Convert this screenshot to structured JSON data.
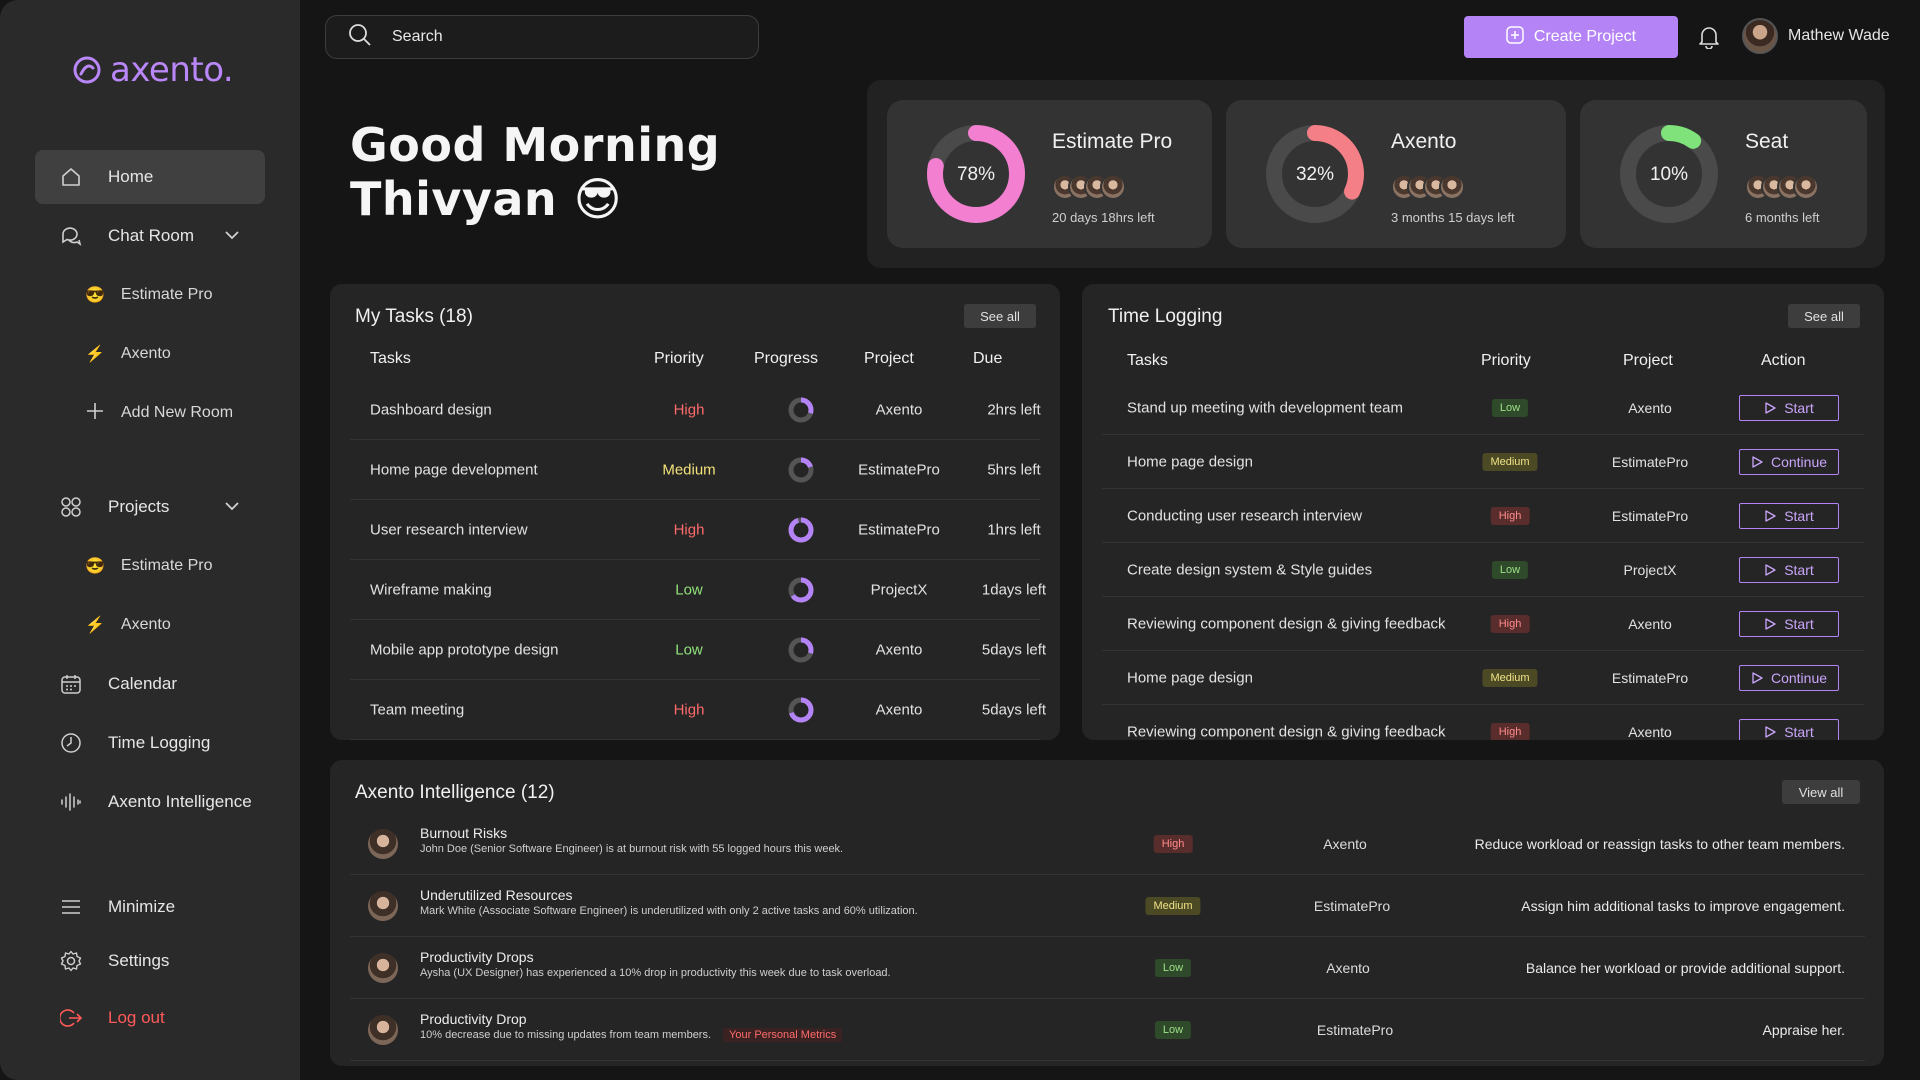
{
  "brand": {
    "name": "axento."
  },
  "sidebar": {
    "home": "Home",
    "chat_room": "Chat Room",
    "chat_rooms": [
      {
        "emoji": "😎",
        "label": "Estimate Pro"
      },
      {
        "emoji": "⚡",
        "label": "Axento"
      }
    ],
    "add_room": "Add New Room",
    "projects": "Projects",
    "project_items": [
      {
        "emoji": "😎",
        "label": "Estimate Pro"
      },
      {
        "emoji": "⚡",
        "label": "Axento"
      }
    ],
    "calendar": "Calendar",
    "time_logging": "Time Logging",
    "intelligence": "Axento Intelligence",
    "minimize": "Minimize",
    "settings": "Settings",
    "logout": "Log out"
  },
  "header": {
    "search_placeholder": "Search",
    "create_label": "Create Project",
    "user_name": "Mathew Wade"
  },
  "greeting": {
    "line1": "Good Morning",
    "line2": "Thivyan 😎"
  },
  "projects": [
    {
      "name": "Estimate Pro",
      "percent": 78,
      "percent_label": "78%",
      "left": "20 days 18hrs left",
      "color": "#f27fd0"
    },
    {
      "name": "Axento",
      "percent": 32,
      "percent_label": "32%",
      "left": "3 months 15 days left",
      "color": "#f57f86"
    },
    {
      "name": "Seat",
      "percent": 10,
      "percent_label": "10%",
      "left": "6 months left",
      "color": "#7fe27a"
    }
  ],
  "my_tasks": {
    "title": "My Tasks (18)",
    "see_all": "See all",
    "headers": {
      "task": "Tasks",
      "priority": "Priority",
      "progress": "Progress",
      "project": "Project",
      "due": "Due"
    },
    "rows": [
      {
        "task": "Dashboard design",
        "priority": "High",
        "progress": 30,
        "project": "Axento",
        "due": "2hrs left"
      },
      {
        "task": "Home page development",
        "priority": "Medium",
        "progress": 20,
        "project": "EstimatePro",
        "due": "5hrs left"
      },
      {
        "task": "User research interview",
        "priority": "High",
        "progress": 95,
        "project": "EstimatePro",
        "due": "1hrs left"
      },
      {
        "task": "Wireframe making",
        "priority": "Low",
        "progress": 65,
        "project": "ProjectX",
        "due": "1days left"
      },
      {
        "task": "Mobile app prototype design",
        "priority": "Low",
        "progress": 30,
        "project": "Axento",
        "due": "5days left"
      },
      {
        "task": "Team meeting",
        "priority": "High",
        "progress": 70,
        "project": "Axento",
        "due": "5days left"
      }
    ]
  },
  "time_logging": {
    "title": "Time Logging",
    "see_all": "See all",
    "headers": {
      "task": "Tasks",
      "priority": "Priority",
      "project": "Project",
      "action": "Action"
    },
    "rows": [
      {
        "task": "Stand up meeting with development team",
        "priority": "Low",
        "project": "Axento",
        "action": "Start"
      },
      {
        "task": "Home page design",
        "priority": "Medium",
        "project": "EstimatePro",
        "action": "Continue"
      },
      {
        "task": "Conducting user research interview",
        "priority": "High",
        "project": "EstimatePro",
        "action": "Start"
      },
      {
        "task": "Create design system & Style guides",
        "priority": "Low",
        "project": "ProjectX",
        "action": "Start"
      },
      {
        "task": "Reviewing component design & giving feedback",
        "priority": "High",
        "project": "Axento",
        "action": "Start"
      },
      {
        "task": "Home page design",
        "priority": "Medium",
        "project": "EstimatePro",
        "action": "Continue"
      },
      {
        "task": "Reviewing component design & giving feedback",
        "priority": "High",
        "project": "Axento",
        "action": "Start"
      }
    ]
  },
  "intelligence": {
    "title": "Axento Intelligence (12)",
    "view_all": "View all",
    "rows": [
      {
        "title": "Burnout Risks",
        "desc": "John Doe (Senior Software Engineer) is at burnout risk with 55 logged hours this week.",
        "priority": "High",
        "project": "Axento",
        "action": "Reduce workload or reassign tasks to other team members.",
        "tag": ""
      },
      {
        "title": "Underutilized Resources",
        "desc": "Mark White (Associate Software Engineer) is underutilized with only 2 active tasks and 60% utilization.",
        "priority": "Medium",
        "project": "EstimatePro",
        "action": "Assign him additional tasks to improve engagement.",
        "tag": ""
      },
      {
        "title": "Productivity Drops",
        "desc": "Aysha (UX Designer) has experienced a 10% drop in productivity this week due to task overload.",
        "priority": "Low",
        "project": "Axento",
        "action": "Balance her workload or provide additional support.",
        "tag": ""
      },
      {
        "title": "Productivity Drop",
        "desc": "10% decrease due to missing updates from team members.",
        "priority": "Low",
        "project": "EstimatePro",
        "action": "Appraise her.",
        "tag": "Your Personal Metrics"
      }
    ]
  }
}
